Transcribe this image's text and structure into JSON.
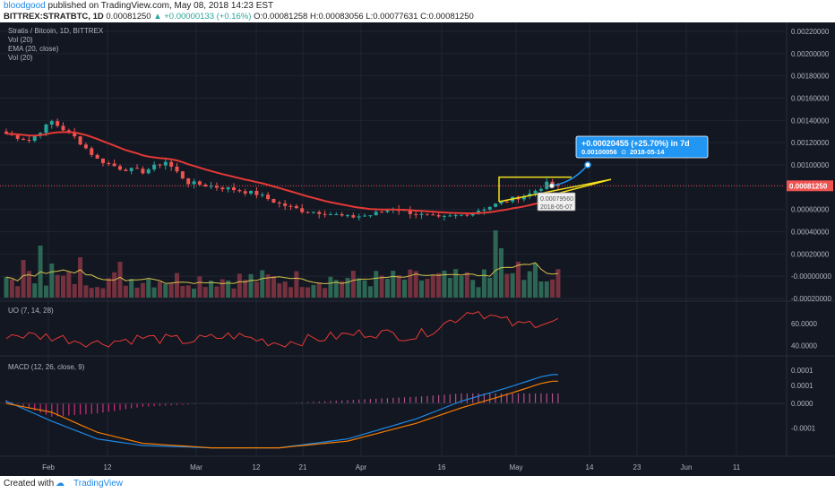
{
  "header": {
    "user": "bloodgood",
    "published_text": "published on TradingView.com, May 08, 2018 14:23 EST",
    "symbol": "BITTREX:STRATBTC, 1D",
    "close_value": "0.00081250",
    "change_text": "▲ +0.00000133 (+0.16%)",
    "o_label": "O:",
    "o_value": "0.00081258",
    "h_label": "H:",
    "h_value": "0.00083056",
    "l_label": "L:",
    "l_value": "0.00077631",
    "c_label": "C:",
    "c_value": "0.00081250"
  },
  "legend": [
    "Stratis / Bitcoin, 1D, BITTREX",
    "Vol (20)",
    "EMA (20, close)",
    "Vol (20)"
  ],
  "uo_label": "UO (7, 14, 28)",
  "macd_label": "MACD (12, 26, close, 9)",
  "price_badge": "0.00081250",
  "annotation": {
    "change": "+0.00020455 (+25.70%) in 7d",
    "target": "0.00100056",
    "date": "2018-05-14",
    "date_icon": "clock-icon"
  },
  "cursor_label": {
    "price": "0.00079560",
    "date": "2018-05-07"
  },
  "footer": {
    "created_with": "Created with",
    "brand": "TradingView",
    "logo_icon": "tradingview-logo-icon"
  },
  "colors": {
    "background": "#131722",
    "up": "#26a69a",
    "down": "#ef5350",
    "ema": "#e53935",
    "vol_ma": "#d4c24a",
    "uo": "#e53935",
    "macd": "#1e88e5",
    "signal": "#f57c00",
    "accent": "#2196f3",
    "pattern": "#f5e11a"
  },
  "chart_data": [
    {
      "type": "candlestick",
      "title": "Stratis / Bitcoin, 1D, BITTREX",
      "x_ticks": [
        "Feb",
        "12",
        "Mar",
        "12",
        "21",
        "Apr",
        "16",
        "May",
        "14",
        "23",
        "Jun",
        "11"
      ],
      "y_ticks": [
        "0.00220000",
        "0.00200000",
        "0.00180000",
        "0.00160000",
        "0.00140000",
        "0.00120000",
        "0.00100000",
        "0.00081250",
        "0.00060000",
        "0.00040000",
        "0.00020000",
        "-0.00000000",
        "-0.00020000"
      ],
      "ylim": [
        -0.0002,
        0.0022
      ],
      "close_start": 0.00128,
      "close_end": 0.0008125,
      "close_high": 0.00141,
      "close_low": 0.00052,
      "trend_notes": [
        "decline from ~0.00128 in late January to ~0.00052 in early April",
        "recovery to ~0.00081 by May 8"
      ],
      "overlays": [
        "EMA (20, close)",
        "Vol (20)"
      ],
      "projection": {
        "change": "+0.00020455 (+25.70%) in 7d",
        "target": 0.00100056,
        "target_date": "2018-05-14"
      }
    },
    {
      "type": "line",
      "title": "UO (7, 14, 28)",
      "y_ticks": [
        "60.0000",
        "40.0000"
      ],
      "ylim": [
        32,
        78
      ],
      "range_notes": "oscillates ~40-55 Feb-Mar, peaks ~75 mid-April, ends ~62"
    },
    {
      "type": "line",
      "title": "MACD (12, 26, close, 9)",
      "series": [
        {
          "name": "MACD"
        },
        {
          "name": "signal"
        },
        {
          "name": "histogram"
        }
      ],
      "y_ticks": [
        "0.0001",
        "0.0001",
        "0.0000",
        "-0.0001"
      ],
      "ylim": [
        -0.00023,
        0.00019
      ]
    }
  ]
}
